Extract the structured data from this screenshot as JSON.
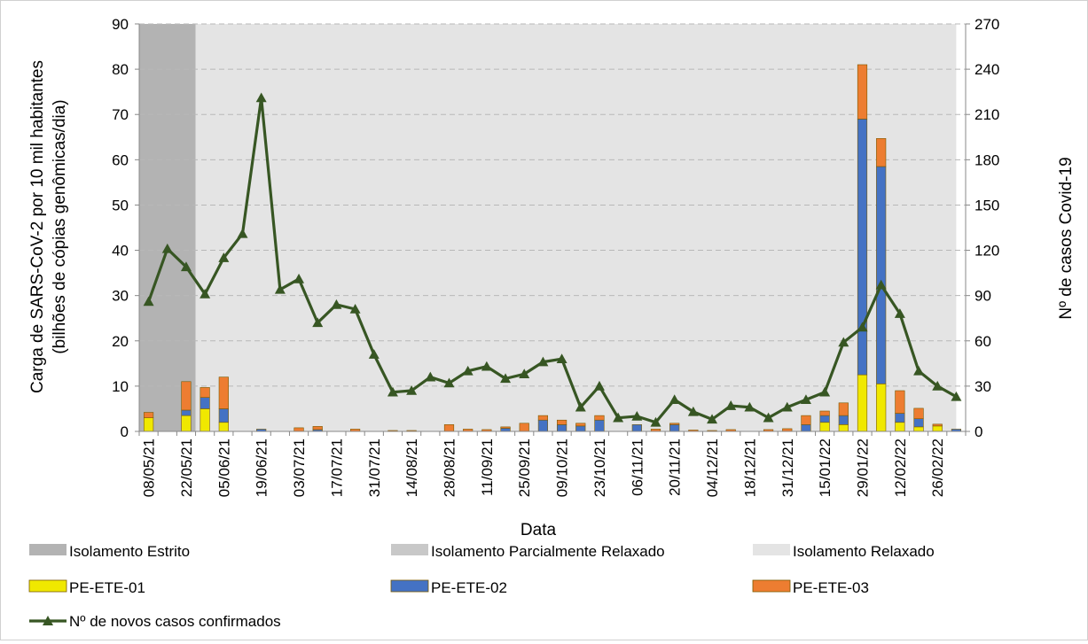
{
  "chart_data": {
    "type": "bar",
    "xlabel": "Data",
    "ylabel_left_line1": "Carga de SARS-CoV-2 por 10 mil habitantes",
    "ylabel_left_line2": "(bilhões de cópias genômicas/dia)",
    "ylabel_right": "Nº de casos Covid-19",
    "ylim_left": [
      0,
      90
    ],
    "ylim_right": [
      0,
      270
    ],
    "yticks_left": [
      "0",
      "10",
      "20",
      "30",
      "40",
      "50",
      "60",
      "70",
      "80",
      "90"
    ],
    "yticks_right": [
      "0",
      "30",
      "60",
      "90",
      "120",
      "150",
      "180",
      "210",
      "240",
      "270"
    ],
    "grid": "horizontal dashed",
    "x_tick_labels": [
      "08/05/21",
      "22/05/21",
      "05/06/21",
      "19/06/21",
      "03/07/21",
      "17/07/21",
      "31/07/21",
      "14/08/21",
      "28/08/21",
      "11/09/21",
      "25/09/21",
      "09/10/21",
      "23/10/21",
      "06/11/21",
      "20/11/21",
      "04/12/21",
      "18/12/21",
      "31/12/21",
      "15/01/22",
      "29/01/22",
      "12/02/22",
      "26/02/22"
    ],
    "weeks": 44,
    "phases": [
      {
        "name": "Isolamento Estrito",
        "start_week": 0,
        "end_week": 3,
        "color": "#b3b3b3"
      },
      {
        "name": "Isolamento Parcialmente Relaxado",
        "start_week": 3,
        "end_week": 3,
        "color": "#c8c8c8"
      },
      {
        "name": "Isolamento Relaxado",
        "start_week": 3,
        "end_week": 43.5,
        "color": "#e4e4e4"
      }
    ],
    "series": [
      {
        "name": "PE-ETE-01",
        "color": "#f0e800",
        "axis": "left",
        "values": [
          3,
          0,
          3.5,
          5,
          2,
          0,
          0,
          0,
          0,
          0,
          0,
          0,
          0,
          0,
          0,
          0,
          0,
          0,
          0,
          0,
          0,
          0,
          0,
          0,
          0,
          0,
          0,
          0,
          0,
          0,
          0,
          0,
          0,
          0,
          0,
          0,
          2,
          1.5,
          12.5,
          10.5,
          2,
          1,
          1.2,
          0
        ]
      },
      {
        "name": "PE-ETE-02",
        "color": "#4472c4",
        "axis": "left",
        "values": [
          0,
          0,
          1.2,
          2.5,
          3,
          0,
          0.5,
          0,
          0,
          0.4,
          0,
          0,
          0,
          0,
          0,
          0,
          0,
          0,
          0,
          0.7,
          0,
          2.5,
          1.5,
          1.2,
          2.5,
          0,
          1.5,
          0,
          1.5,
          0,
          0,
          0,
          0,
          0,
          0,
          1.5,
          1.5,
          2,
          56.5,
          48,
          2,
          1.8,
          0,
          0.5
        ]
      },
      {
        "name": "PE-ETE-03",
        "color": "#ed7d31",
        "axis": "left",
        "values": [
          1.2,
          0,
          6.3,
          2.2,
          7,
          0,
          0,
          0,
          0.8,
          0.7,
          0,
          0.5,
          0,
          0.2,
          0.2,
          0,
          1.5,
          0.5,
          0.4,
          0.3,
          1.8,
          1,
          1,
          0.6,
          1,
          0,
          0,
          0.5,
          0.3,
          0.3,
          0.2,
          0.4,
          0,
          0.4,
          0.6,
          2,
          1,
          2.8,
          12,
          6.2,
          5,
          2.3,
          0.4,
          0
        ]
      },
      {
        "name": "Nº de novos casos confirmados",
        "color": "#375623",
        "axis": "right",
        "type": "line",
        "values": [
          86,
          121,
          109,
          91,
          115,
          131,
          221,
          94,
          101,
          72,
          84,
          81,
          51,
          26,
          27,
          36,
          32,
          40,
          43,
          35,
          38,
          46,
          48,
          16,
          30,
          9,
          10,
          6,
          21,
          13,
          8,
          17,
          16,
          9,
          16,
          21,
          26,
          59,
          69,
          97,
          78,
          40,
          30,
          23
        ]
      }
    ],
    "legend": [
      {
        "label": "Isolamento Estrito",
        "kind": "box",
        "color": "#b3b3b3"
      },
      {
        "label": "Isolamento Parcialmente Relaxado",
        "kind": "box",
        "color": "#c8c8c8"
      },
      {
        "label": "Isolamento Relaxado",
        "kind": "box",
        "color": "#e4e4e4"
      },
      {
        "label": "PE-ETE-01",
        "kind": "box",
        "color": "#f0e800"
      },
      {
        "label": "PE-ETE-02",
        "kind": "box",
        "color": "#4472c4"
      },
      {
        "label": "PE-ETE-03",
        "kind": "box",
        "color": "#ed7d31"
      },
      {
        "label": "Nº de novos casos confirmados",
        "kind": "line",
        "color": "#375623"
      }
    ],
    "legend_placement": "bottom"
  }
}
